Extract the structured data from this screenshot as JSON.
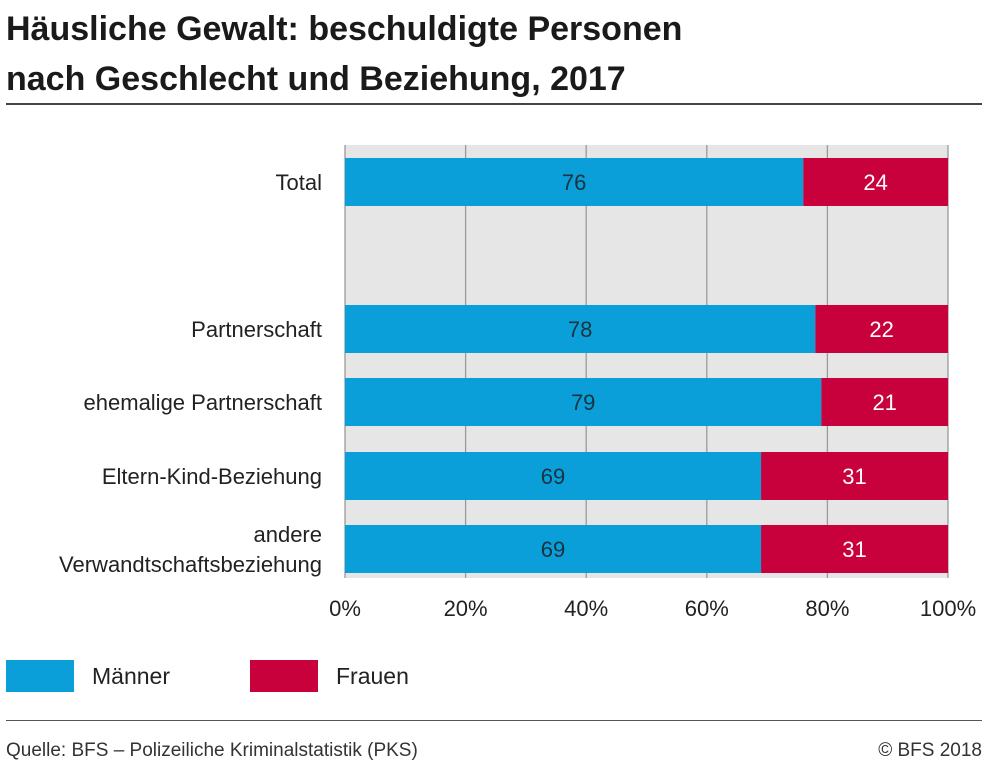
{
  "title_line1": "Häusliche Gewalt: beschuldigte Personen",
  "title_line2": "nach Geschlecht und Beziehung, 2017",
  "source": "Quelle: BFS – Polizeiliche Kriminalstatistik (PKS)",
  "copyright": "© BFS 2018",
  "colors": {
    "maenner": "#0a9fd8",
    "frauen": "#c8003c"
  },
  "chart_data": {
    "type": "bar",
    "orientation": "horizontal",
    "stacked": true,
    "categories": [
      "Total",
      "Partnerschaft",
      "ehemalige Partnerschaft",
      "Eltern-Kind-Beziehung",
      "andere Verwandtschaftsbeziehung"
    ],
    "category_lines": [
      [
        "Total"
      ],
      [
        "Partnerschaft"
      ],
      [
        "ehemalige Partnerschaft"
      ],
      [
        "Eltern-Kind-Beziehung"
      ],
      [
        "andere",
        "Verwandtschaftsbeziehung"
      ]
    ],
    "series": [
      {
        "name": "Männer",
        "color": "#0a9fd8",
        "values": [
          76,
          78,
          79,
          69,
          69
        ]
      },
      {
        "name": "Frauen",
        "color": "#c8003c",
        "values": [
          24,
          22,
          21,
          31,
          31
        ]
      }
    ],
    "xlim": [
      0,
      100
    ],
    "xticks": [
      0,
      20,
      40,
      60,
      80,
      100
    ],
    "xtick_labels": [
      "0%",
      "20%",
      "40%",
      "60%",
      "80%",
      "100%"
    ],
    "grid": "vertical",
    "legend_position": "bottom-left"
  }
}
